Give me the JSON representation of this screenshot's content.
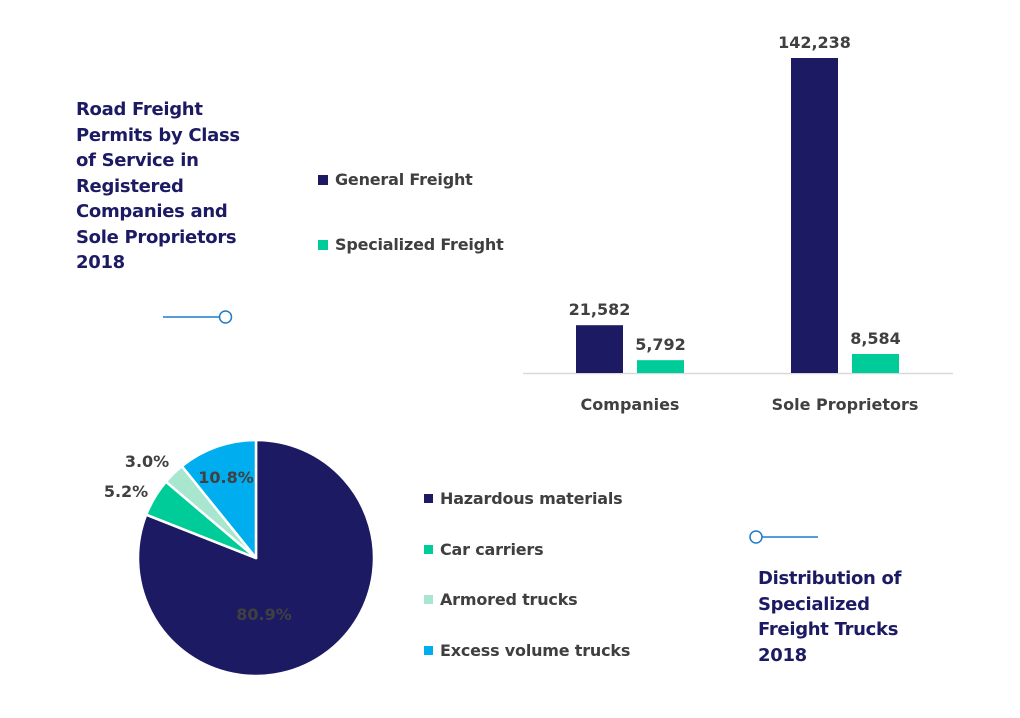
{
  "colors": {
    "title": "#1c1a63",
    "general": "#1c1a63",
    "specialized": "#00cc99",
    "hazardous": "#1c1a63",
    "car": "#00cc99",
    "armored": "#a8e6cf",
    "excess": "#00aeef",
    "connector": "#1f7bc9",
    "axis": "#d9d9d9",
    "label": "#404040"
  },
  "chart_data": [
    {
      "type": "bar",
      "title": "Road Freight Permits by Class of Service in Registered Companies and Sole Proprietors 2018",
      "categories": [
        "Companies",
        "Sole Proprietors"
      ],
      "series": [
        {
          "name": "General Freight",
          "values": [
            21582,
            142238
          ],
          "labels": [
            "21,582",
            "142,238"
          ]
        },
        {
          "name": "Specialized Freight",
          "values": [
            5792,
            8584
          ],
          "labels": [
            "5,792",
            "8,584"
          ]
        }
      ],
      "ylim": [
        0,
        142238
      ],
      "grid": false,
      "legend": "left"
    },
    {
      "type": "pie",
      "title": "Distribution of Specialized Freight Trucks 2018",
      "slices": [
        {
          "name": "Hazardous materials",
          "value": 80.9,
          "label": "80.9%"
        },
        {
          "name": "Car carriers",
          "value": 5.2,
          "label": "5.2%"
        },
        {
          "name": "Armored trucks",
          "value": 3.0,
          "label": "3.0%"
        },
        {
          "name": "Excess volume trucks",
          "value": 10.8,
          "label": "10.8%"
        }
      ],
      "legend": "right"
    }
  ]
}
